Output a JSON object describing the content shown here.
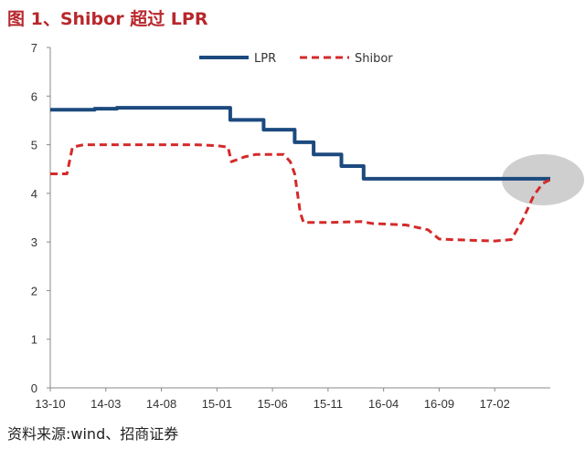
{
  "title": "图 1、Shibor 超过 LPR",
  "source": "资料来源:wind、招商证券",
  "chart_data": {
    "type": "line",
    "title": "图 1、Shibor 超过 LPR",
    "xlabel": "",
    "ylabel": "",
    "ylim": [
      0,
      7
    ],
    "yticks": [
      0,
      1,
      2,
      3,
      4,
      5,
      6,
      7
    ],
    "x_tick_labels": [
      "13-10",
      "14-03",
      "14-08",
      "15-01",
      "15-06",
      "15-11",
      "16-04",
      "16-09",
      "17-02"
    ],
    "x_range_months": [
      0,
      45
    ],
    "grid": false,
    "legend_position": "top-right",
    "highlight": "gray ellipse around latest values near 4.3",
    "series": [
      {
        "name": "LPR",
        "color": "#1c4a7e",
        "style": "solid",
        "step": true,
        "points": [
          [
            0,
            5.72
          ],
          [
            2,
            5.72
          ],
          [
            4,
            5.74
          ],
          [
            6,
            5.76
          ],
          [
            10,
            5.76
          ],
          [
            14,
            5.76
          ],
          [
            16,
            5.76
          ],
          [
            16.2,
            5.51
          ],
          [
            19,
            5.51
          ],
          [
            19.2,
            5.31
          ],
          [
            21.8,
            5.31
          ],
          [
            22,
            5.05
          ],
          [
            23.5,
            5.05
          ],
          [
            23.7,
            4.8
          ],
          [
            26,
            4.8
          ],
          [
            26.2,
            4.56
          ],
          [
            28,
            4.56
          ],
          [
            28.2,
            4.3
          ],
          [
            45,
            4.3
          ]
        ]
      },
      {
        "name": "Shibor",
        "color": "#d42a2a",
        "style": "dashed",
        "step": false,
        "points": [
          [
            0,
            4.4
          ],
          [
            1.5,
            4.4
          ],
          [
            2,
            4.95
          ],
          [
            3,
            5.0
          ],
          [
            8,
            5.0
          ],
          [
            13,
            5.0
          ],
          [
            15,
            4.98
          ],
          [
            16,
            4.95
          ],
          [
            16.3,
            4.65
          ],
          [
            17.5,
            4.75
          ],
          [
            18.5,
            4.8
          ],
          [
            21,
            4.8
          ],
          [
            21.6,
            4.65
          ],
          [
            22,
            4.4
          ],
          [
            22.5,
            3.6
          ],
          [
            22.8,
            3.4
          ],
          [
            25,
            3.4
          ],
          [
            28,
            3.42
          ],
          [
            29,
            3.38
          ],
          [
            32,
            3.35
          ],
          [
            34,
            3.25
          ],
          [
            35,
            3.06
          ],
          [
            36,
            3.05
          ],
          [
            40,
            3.02
          ],
          [
            41.5,
            3.05
          ],
          [
            42.5,
            3.45
          ],
          [
            43.5,
            3.95
          ],
          [
            44.3,
            4.2
          ],
          [
            45,
            4.28
          ]
        ]
      }
    ]
  }
}
